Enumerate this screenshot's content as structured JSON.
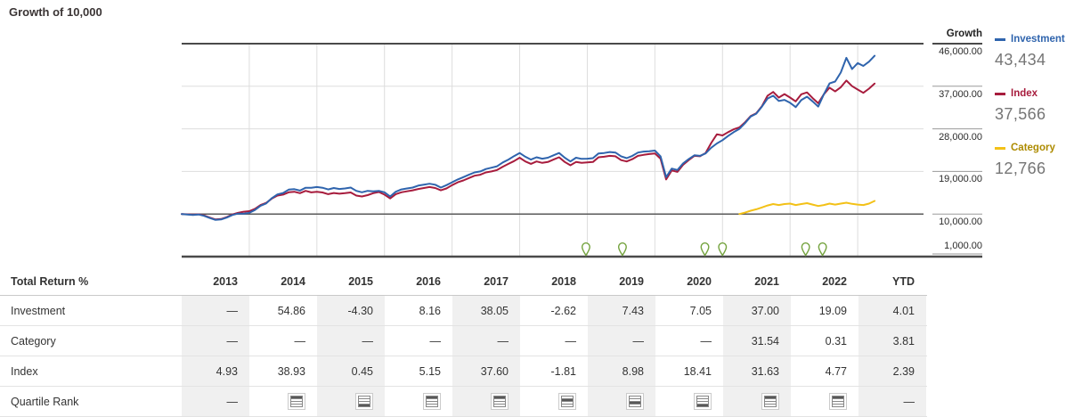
{
  "title": "Growth of 10,000",
  "chart_data": {
    "type": "line",
    "title": "Growth of 10,000",
    "x_range": [
      2013,
      2024
    ],
    "x_year_boundaries": [
      2014,
      2015,
      2016,
      2017,
      2018,
      2019,
      2020,
      2021,
      2022,
      2023
    ],
    "y_axis": {
      "title": "Growth",
      "range": [
        1000,
        46000
      ],
      "ticks": [
        {
          "value": 46000,
          "label": "46,000.00"
        },
        {
          "value": 37000,
          "label": "37,000.00"
        },
        {
          "value": 28000,
          "label": "28,000.00"
        },
        {
          "value": 19000,
          "label": "19,000.00"
        },
        {
          "value": 10000,
          "label": "10,000.00"
        },
        {
          "value": 1000,
          "label": "1,000.00"
        }
      ]
    },
    "series": [
      {
        "name": "Investment",
        "display_value": "43,434",
        "color": "#2f64ad",
        "label_color": "#2f64ad",
        "start_year": 2013.0,
        "points_per_year": 12,
        "values": [
          10000,
          9900,
          9800,
          9900,
          9600,
          9150,
          8750,
          8850,
          9250,
          9800,
          10100,
          10050,
          10250,
          10850,
          11750,
          12250,
          13350,
          14150,
          14450,
          15150,
          15250,
          14950,
          15550,
          15563,
          15700,
          15550,
          15200,
          15500,
          15300,
          15400,
          15600,
          14900,
          14600,
          14900,
          14800,
          14894,
          14600,
          13700,
          14700,
          15200,
          15400,
          15600,
          16000,
          16200,
          16400,
          16200,
          15600,
          16109,
          16700,
          17300,
          17800,
          18300,
          18800,
          19000,
          19500,
          19800,
          20100,
          20900,
          21500,
          22238,
          22900,
          22100,
          21500,
          22000,
          21700,
          21900,
          22400,
          22900,
          21900,
          21100,
          21900,
          21656,
          21700,
          21800,
          22800,
          22900,
          23100,
          23000,
          22200,
          21800,
          22300,
          23000,
          23200,
          23265,
          23400,
          22200,
          17800,
          19600,
          19300,
          20700,
          21600,
          22400,
          22300,
          22800,
          24000,
          24905,
          25600,
          26500,
          27300,
          28000,
          29200,
          30600,
          31200,
          32700,
          34400,
          35000,
          33900,
          34120,
          33500,
          32600,
          34100,
          34800,
          33800,
          32700,
          35300,
          37600,
          38000,
          39900,
          43000,
          40633,
          41900,
          41300,
          42200,
          43434
        ]
      },
      {
        "name": "Index",
        "display_value": "37,566",
        "color": "#a71c3d",
        "label_color": "#a71c3d",
        "start_year": 2013.0,
        "points_per_year": 12,
        "values": [
          10000,
          9950,
          9870,
          9950,
          9700,
          9250,
          8850,
          8950,
          9350,
          9900,
          10250,
          10493,
          10600,
          11100,
          11900,
          12350,
          13250,
          13900,
          14100,
          14600,
          14700,
          14400,
          14900,
          14578,
          14700,
          14550,
          14200,
          14450,
          14300,
          14400,
          14550,
          13900,
          13700,
          14000,
          14400,
          14644,
          14100,
          13300,
          14200,
          14600,
          14800,
          15000,
          15300,
          15500,
          15700,
          15500,
          15000,
          15398,
          16100,
          16700,
          17100,
          17600,
          18100,
          18300,
          18800,
          19000,
          19300,
          20000,
          20600,
          21188,
          21900,
          21100,
          20600,
          21100,
          20800,
          21000,
          21500,
          22000,
          21000,
          20300,
          21000,
          20804,
          20900,
          21000,
          22000,
          22100,
          22300,
          22200,
          21400,
          21100,
          21600,
          22300,
          22500,
          22672,
          22800,
          21700,
          17300,
          19200,
          18900,
          20400,
          21400,
          22300,
          22200,
          22900,
          25000,
          26846,
          26600,
          27300,
          27900,
          28300,
          29400,
          30700,
          31300,
          32800,
          35000,
          35800,
          34600,
          35337,
          34600,
          33800,
          35300,
          35700,
          34500,
          33400,
          35300,
          36700,
          35900,
          36800,
          38200,
          37023,
          36300,
          35600,
          36500,
          37566
        ]
      },
      {
        "name": "Category",
        "display_value": "12,766",
        "color": "#f3c117",
        "label_color": "#ad8b00",
        "start_year": 2021.25,
        "points_per_year": 12,
        "values": [
          10000,
          10300,
          10700,
          11000,
          11400,
          11800,
          12100,
          11900,
          12100,
          12200,
          11900,
          12100,
          12300,
          12000,
          11700,
          11900,
          12200,
          12000,
          12200,
          12400,
          12138,
          12000,
          11900,
          12200,
          12766
        ]
      }
    ],
    "event_markers": {
      "icon": "pin-icon",
      "color": "#74a33e",
      "years": [
        2018.98,
        2019.52,
        2020.74,
        2021.0,
        2022.23,
        2022.48
      ]
    }
  },
  "table": {
    "header": {
      "label": "Total Return %",
      "columns": [
        "2013",
        "2014",
        "2015",
        "2016",
        "2017",
        "2018",
        "2019",
        "2020",
        "2021",
        "2022",
        "YTD"
      ]
    },
    "rows": [
      {
        "label": "Investment",
        "values": [
          "—",
          "54.86",
          "-4.30",
          "8.16",
          "38.05",
          "-2.62",
          "7.43",
          "7.05",
          "37.00",
          "19.09",
          "4.01"
        ]
      },
      {
        "label": "Category",
        "values": [
          "—",
          "—",
          "—",
          "—",
          "—",
          "—",
          "—",
          "—",
          "31.54",
          "0.31",
          "3.81"
        ]
      },
      {
        "label": "Index",
        "values": [
          "4.93",
          "38.93",
          "0.45",
          "5.15",
          "37.60",
          "-1.81",
          "8.98",
          "18.41",
          "31.63",
          "4.77",
          "2.39"
        ]
      }
    ],
    "quartile_row": {
      "label": "Quartile Rank",
      "quartiles": [
        null,
        1,
        4,
        1,
        1,
        2,
        3,
        4,
        1,
        1,
        null
      ]
    }
  }
}
